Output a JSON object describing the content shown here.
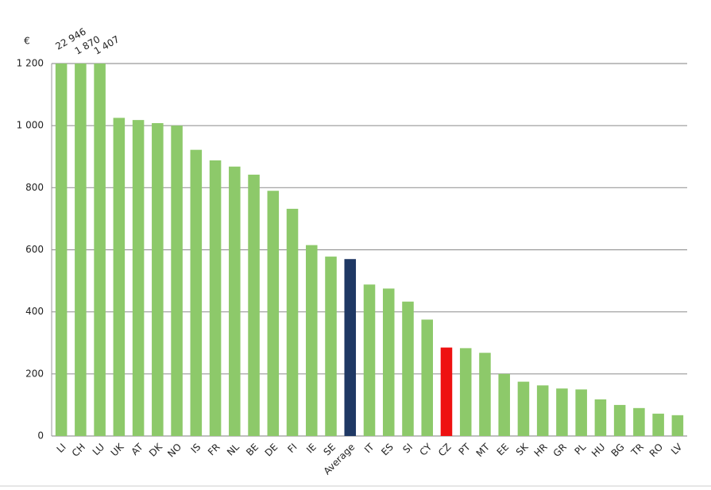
{
  "chart_data": {
    "type": "bar",
    "y_label": "€",
    "categories": [
      "LI",
      "CH",
      "LU",
      "UK",
      "AT",
      "DK",
      "NO",
      "IS",
      "FR",
      "NL",
      "BE",
      "DE",
      "FI",
      "IE",
      "SE",
      "Average",
      "IT",
      "ES",
      "SI",
      "CY",
      "CZ",
      "PT",
      "MT",
      "EE",
      "SK",
      "HR",
      "GR",
      "PL",
      "HU",
      "BG",
      "TR",
      "RO",
      "LV"
    ],
    "values": [
      22946,
      1870,
      1407,
      1025,
      1018,
      1008,
      1000,
      922,
      888,
      868,
      842,
      790,
      732,
      615,
      578,
      570,
      488,
      475,
      433,
      375,
      285,
      283,
      268,
      200,
      175,
      163,
      153,
      150,
      118,
      100,
      90,
      72,
      67
    ],
    "value_labels": [
      "22 946",
      "1 870",
      "1 407",
      null,
      null,
      null,
      null,
      null,
      null,
      null,
      null,
      null,
      null,
      null,
      null,
      null,
      null,
      null,
      null,
      null,
      null,
      null,
      null,
      null,
      null,
      null,
      null,
      null,
      null,
      null,
      null,
      null,
      null
    ],
    "colors": [
      "#8dc96a",
      "#8dc96a",
      "#8dc96a",
      "#8dc96a",
      "#8dc96a",
      "#8dc96a",
      "#8dc96a",
      "#8dc96a",
      "#8dc96a",
      "#8dc96a",
      "#8dc96a",
      "#8dc96a",
      "#8dc96a",
      "#8dc96a",
      "#8dc96a",
      "#1f3864",
      "#8dc96a",
      "#8dc96a",
      "#8dc96a",
      "#8dc96a",
      "#ee1111",
      "#8dc96a",
      "#8dc96a",
      "#8dc96a",
      "#8dc96a",
      "#8dc96a",
      "#8dc96a",
      "#8dc96a",
      "#8dc96a",
      "#8dc96a",
      "#8dc96a",
      "#8dc96a",
      "#8dc96a"
    ],
    "ylim": [
      0,
      1200
    ],
    "yticks": [
      0,
      200,
      400,
      600,
      800,
      {
        "value": 1000,
        "label": "1 000"
      },
      {
        "value": 1200,
        "label": "1 200"
      }
    ],
    "grid": true
  }
}
